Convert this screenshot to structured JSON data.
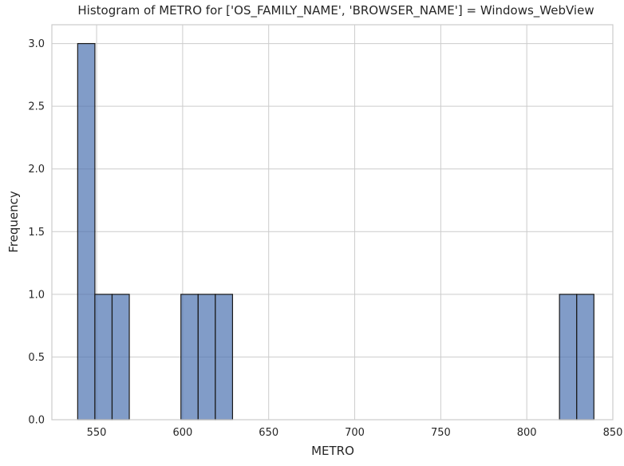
{
  "chart_data": {
    "type": "bar",
    "title": "Histogram of METRO for ['OS_FAMILY_NAME', 'BROWSER_NAME'] = Windows_WebView",
    "xlabel": "METRO",
    "ylabel": "Frequency",
    "xlim": [
      524,
      850
    ],
    "ylim": [
      0,
      3.15
    ],
    "xticks": [
      550,
      600,
      650,
      700,
      750,
      800,
      850
    ],
    "yticks": [
      0.0,
      0.5,
      1.0,
      1.5,
      2.0,
      2.5,
      3.0
    ],
    "ytick_labels": [
      "0.0",
      "0.5",
      "1.0",
      "1.5",
      "2.0",
      "2.5",
      "3.0"
    ],
    "bins": [
      {
        "x0": 539,
        "x1": 549,
        "count": 3
      },
      {
        "x0": 549,
        "x1": 559,
        "count": 1
      },
      {
        "x0": 559,
        "x1": 569,
        "count": 1
      },
      {
        "x0": 599,
        "x1": 609,
        "count": 1
      },
      {
        "x0": 609,
        "x1": 619,
        "count": 1
      },
      {
        "x0": 619,
        "x1": 629,
        "count": 1
      },
      {
        "x0": 819,
        "x1": 829,
        "count": 1
      },
      {
        "x0": 829,
        "x1": 839,
        "count": 1
      }
    ],
    "grid": true,
    "bar_color": "#4c72b0"
  }
}
